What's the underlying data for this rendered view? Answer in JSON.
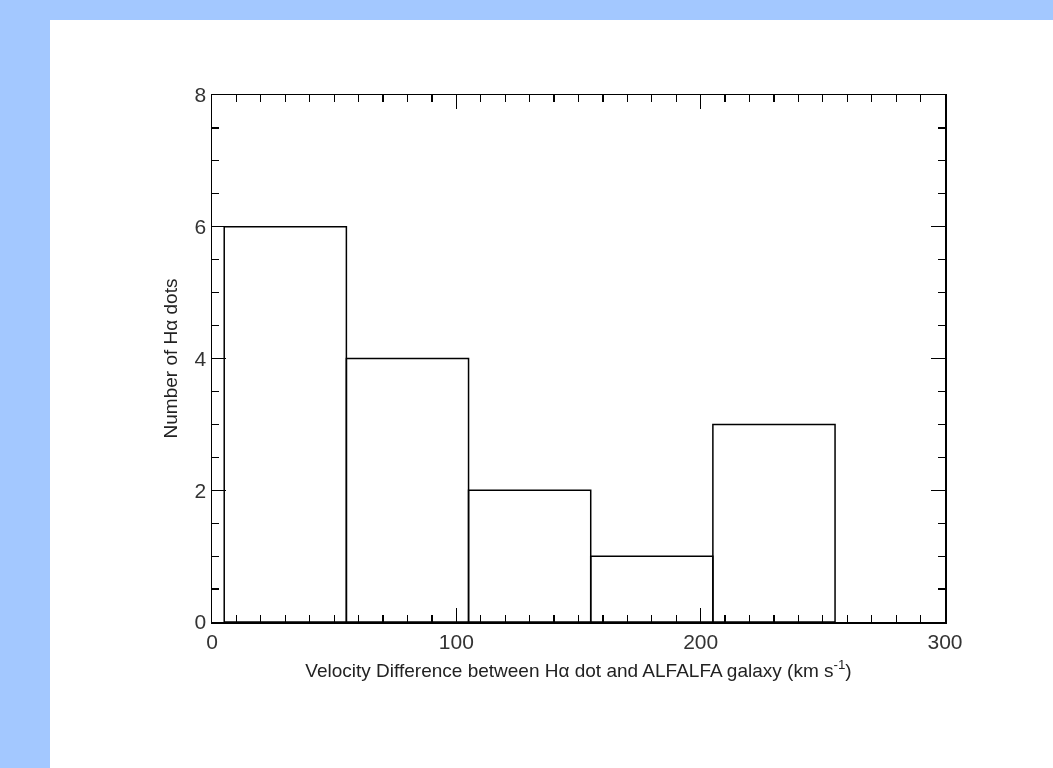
{
  "chart_data": {
    "type": "histogram",
    "xlabel": "Velocity Difference between Hα dot and ALFALFA galaxy (km s$^{-1}$)",
    "ylabel": "Number of Hα dots",
    "bins": [
      5,
      55,
      105,
      155,
      205,
      255
    ],
    "values": [
      6,
      4,
      2,
      1,
      3
    ],
    "color": "#000000",
    "xlim": [
      0,
      300
    ],
    "ylim": [
      0,
      8
    ],
    "xticks": [
      0,
      {
        "value": 10,
        "label": null
      },
      {
        "value": 20,
        "label": null
      },
      {
        "value": 30,
        "label": null
      },
      {
        "value": 40,
        "label": null
      },
      {
        "value": 50,
        "label": null
      },
      {
        "value": 60,
        "label": null
      },
      {
        "value": 70,
        "label": null
      },
      {
        "value": 80,
        "label": null
      },
      {
        "value": 90,
        "label": null
      },
      100,
      {
        "value": 110,
        "label": null
      },
      {
        "value": 120,
        "label": null
      },
      {
        "value": 130,
        "label": null
      },
      {
        "value": 140,
        "label": null
      },
      {
        "value": 150,
        "label": null
      },
      {
        "value": 160,
        "label": null
      },
      {
        "value": 170,
        "label": null
      },
      {
        "value": 180,
        "label": null
      },
      {
        "value": 190,
        "label": null
      },
      200,
      {
        "value": 210,
        "label": null
      },
      {
        "value": 220,
        "label": null
      },
      {
        "value": 230,
        "label": null
      },
      {
        "value": 240,
        "label": null
      },
      {
        "value": 250,
        "label": null
      },
      {
        "value": 260,
        "label": null
      },
      {
        "value": 270,
        "label": null
      },
      {
        "value": 280,
        "label": null
      },
      {
        "value": 290,
        "label": null
      },
      300
    ],
    "yticks": [
      0,
      {
        "value": 0.5,
        "label": null
      },
      {
        "value": 1,
        "label": null
      },
      {
        "value": 1.5,
        "label": null
      },
      2,
      {
        "value": 2.5,
        "label": null
      },
      {
        "value": 3,
        "label": null
      },
      {
        "value": 3.5,
        "label": null
      },
      4,
      {
        "value": 4.5,
        "label": null
      },
      {
        "value": 5,
        "label": null
      },
      {
        "value": 5.5,
        "label": null
      },
      6,
      {
        "value": 6.5,
        "label": null
      },
      {
        "value": 7,
        "label": null
      },
      {
        "value": 7.5,
        "label": null
      },
      8
    ],
    "grid": false
  }
}
